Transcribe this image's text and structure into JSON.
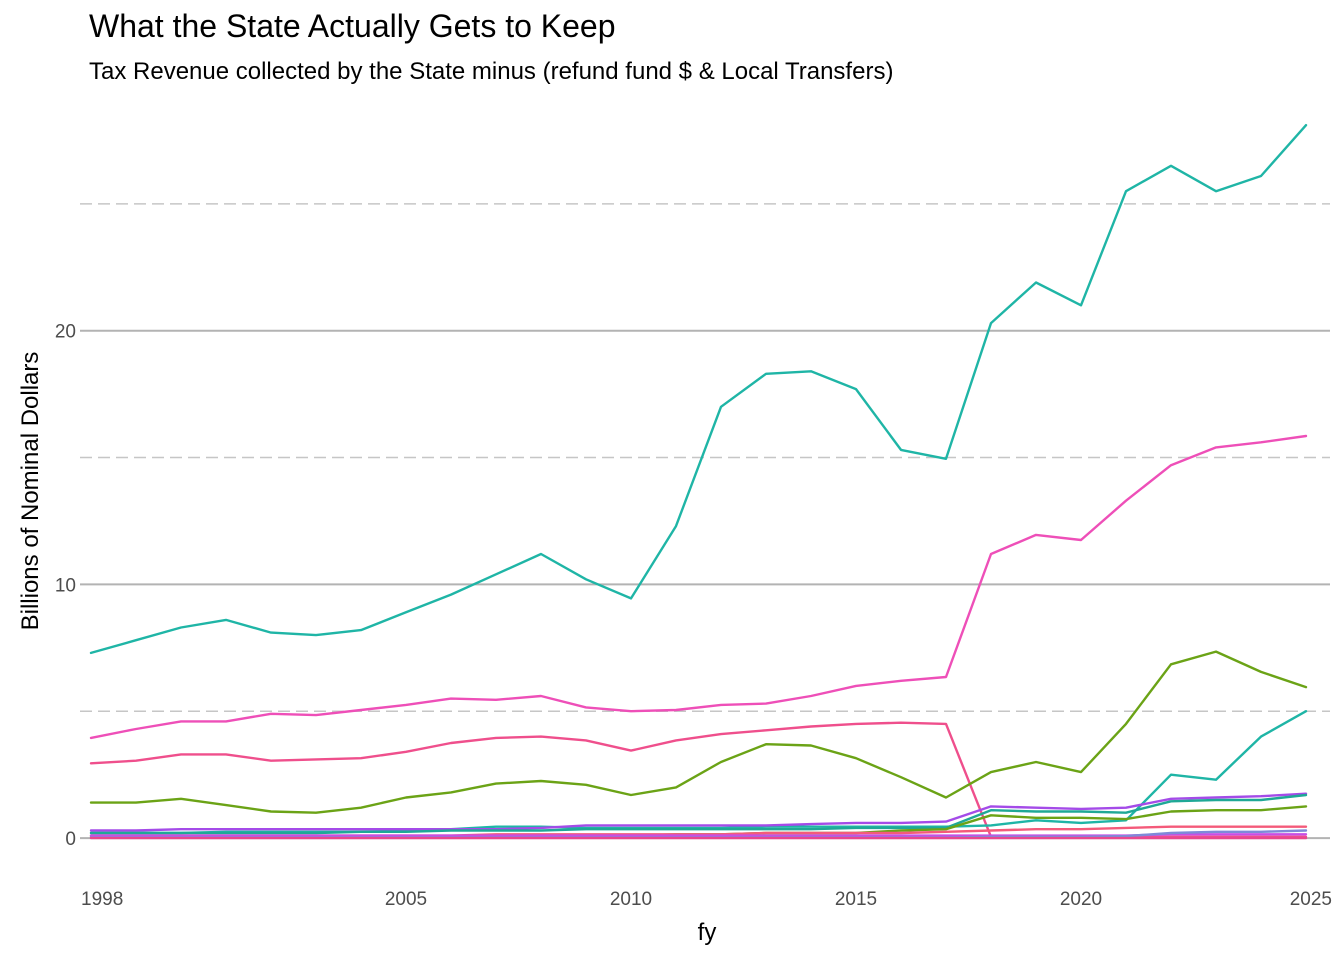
{
  "chart_data": {
    "type": "line",
    "title": "What the State Actually Gets to Keep",
    "subtitle": "Tax Revenue collected by the State minus (refund fund $ & Local Transfers)",
    "xlabel": "fy",
    "ylabel": "Billions of Nominal Dollars",
    "xlim": [
      1998,
      2025
    ],
    "ylim": [
      -1.1,
      28.7
    ],
    "x_ticks": [
      1998,
      2005,
      2010,
      2015,
      2020,
      2025
    ],
    "y_ticks": [
      0,
      10,
      20
    ],
    "y_minor_ticks": [
      5,
      15,
      25
    ],
    "grid": true,
    "legend": "none",
    "x": [
      1998,
      1999,
      2000,
      2001,
      2002,
      2003,
      2004,
      2005,
      2006,
      2007,
      2008,
      2009,
      2010,
      2011,
      2012,
      2013,
      2014,
      2015,
      2016,
      2017,
      2018,
      2019,
      2020,
      2021,
      2022,
      2023,
      2024,
      2025
    ],
    "series": [
      {
        "color": "#1FB5A6",
        "values": [
          7.3,
          7.8,
          8.3,
          8.6,
          8.1,
          8.0,
          8.2,
          8.9,
          9.6,
          10.4,
          11.2,
          10.2,
          9.45,
          12.3,
          17.0,
          18.3,
          18.4,
          17.7,
          15.3,
          14.95,
          20.3,
          21.9,
          21.0,
          25.5,
          26.5,
          25.5,
          26.1,
          28.1
        ]
      },
      {
        "color": "#EE4FB8",
        "values": [
          3.95,
          4.3,
          4.6,
          4.6,
          4.9,
          4.85,
          5.05,
          5.25,
          5.5,
          5.45,
          5.6,
          5.15,
          5.0,
          5.05,
          5.25,
          5.3,
          5.6,
          6.0,
          6.2,
          6.35,
          11.2,
          11.95,
          11.75,
          13.3,
          14.7,
          15.4,
          15.6,
          15.85
        ]
      },
      {
        "color": "#EF4F8C",
        "values": [
          2.95,
          3.05,
          3.3,
          3.3,
          3.05,
          3.1,
          3.15,
          3.4,
          3.75,
          3.95,
          4.0,
          3.85,
          3.45,
          3.85,
          4.1,
          4.25,
          4.4,
          4.5,
          4.55,
          4.5,
          0.05,
          0.05,
          0.05,
          0.05,
          0.05,
          0.05,
          0.05,
          0.05
        ]
      },
      {
        "color": "#6BA316",
        "values": [
          1.4,
          1.4,
          1.55,
          1.3,
          1.05,
          1.0,
          1.2,
          1.6,
          1.8,
          2.15,
          2.25,
          2.1,
          1.7,
          2.0,
          3.0,
          3.7,
          3.65,
          3.15,
          2.4,
          1.6,
          2.6,
          3.0,
          2.6,
          4.5,
          6.85,
          7.35,
          6.55,
          5.95
        ]
      },
      {
        "color": "#1FB5A6",
        "values": [
          0.2,
          0.2,
          0.2,
          0.25,
          0.25,
          0.25,
          0.25,
          0.3,
          0.35,
          0.45,
          0.45,
          0.4,
          0.4,
          0.4,
          0.4,
          0.45,
          0.45,
          0.45,
          0.45,
          0.45,
          0.5,
          0.7,
          0.6,
          0.7,
          2.5,
          2.3,
          4.0,
          5.0
        ]
      },
      {
        "color": "#A44BE8",
        "values": [
          0.3,
          0.3,
          0.35,
          0.35,
          0.35,
          0.35,
          0.35,
          0.35,
          0.35,
          0.35,
          0.4,
          0.5,
          0.5,
          0.5,
          0.5,
          0.5,
          0.55,
          0.6,
          0.6,
          0.65,
          1.25,
          1.2,
          1.15,
          1.2,
          1.55,
          1.6,
          1.65,
          1.75
        ]
      },
      {
        "color": "#1FA896",
        "values": [
          0.2,
          0.2,
          0.2,
          0.2,
          0.2,
          0.2,
          0.25,
          0.25,
          0.3,
          0.3,
          0.3,
          0.35,
          0.35,
          0.35,
          0.35,
          0.35,
          0.35,
          0.4,
          0.4,
          0.4,
          1.1,
          1.05,
          1.05,
          1.0,
          1.45,
          1.5,
          1.5,
          1.7
        ]
      },
      {
        "color": "#6BA316",
        "values": [
          0.05,
          0.05,
          0.05,
          0.05,
          0.05,
          0.05,
          0.05,
          0.05,
          0.05,
          0.05,
          0.1,
          0.1,
          0.1,
          0.15,
          0.15,
          0.2,
          0.2,
          0.2,
          0.3,
          0.35,
          0.9,
          0.8,
          0.8,
          0.75,
          1.05,
          1.1,
          1.1,
          1.25
        ]
      },
      {
        "color": "#F45A7A",
        "values": [
          0.1,
          0.1,
          0.1,
          0.1,
          0.1,
          0.1,
          0.1,
          0.1,
          0.1,
          0.15,
          0.15,
          0.15,
          0.15,
          0.15,
          0.15,
          0.2,
          0.2,
          0.2,
          0.2,
          0.25,
          0.3,
          0.35,
          0.35,
          0.4,
          0.45,
          0.45,
          0.45,
          0.45
        ]
      },
      {
        "color": "#C84EE6",
        "values": [
          0.1,
          0.1,
          0.1,
          0.1,
          0.1,
          0.1,
          0.1,
          0.1,
          0.1,
          0.1,
          0.1,
          0.1,
          0.1,
          0.1,
          0.1,
          0.1,
          0.1,
          0.1,
          0.1,
          0.1,
          0.1,
          0.1,
          0.1,
          0.1,
          0.15,
          0.15,
          0.15,
          0.15
        ]
      },
      {
        "color": "#7E8AD8",
        "values": [
          0.02,
          0.02,
          0.02,
          0.02,
          0.02,
          0.02,
          0.02,
          0.02,
          0.02,
          0.02,
          0.02,
          0.02,
          0.02,
          0.02,
          0.02,
          0.02,
          0.02,
          0.02,
          0.02,
          0.02,
          0.05,
          0.05,
          0.05,
          0.08,
          0.2,
          0.25,
          0.25,
          0.3
        ]
      },
      {
        "color": "#E8478F",
        "values": [
          0.0,
          0.0,
          0.0,
          0.0,
          0.0,
          0.0,
          0.0,
          0.0,
          0.0,
          0.0,
          0.0,
          0.0,
          0.0,
          0.0,
          0.0,
          0.0,
          0.0,
          0.0,
          0.0,
          0.0,
          0.0,
          0.0,
          0.0,
          0.0,
          0.0,
          0.0,
          0.0,
          0.0
        ]
      }
    ]
  }
}
